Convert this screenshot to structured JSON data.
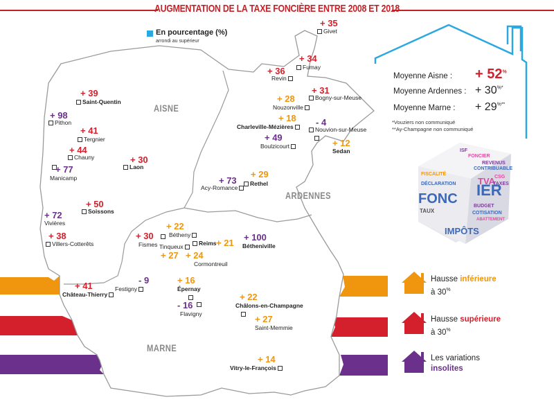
{
  "title": "AUGMENTATION DE LA TAXE FONCIÈRE ENTRE 2008 ET 2018",
  "legend": {
    "label": "En pourcentage (%)",
    "sub": "arrondi au supérieur"
  },
  "regions": {
    "aisne": "AISNE",
    "ardennes": "ARDENNES",
    "marne": "MARNE"
  },
  "colors": {
    "orange": "#f0960e",
    "red": "#d4202c",
    "purple": "#6b2f8c",
    "title": "#c62127",
    "blue": "#2ba8e0"
  },
  "towns": [
    {
      "name": "Givet",
      "value": "+ 35",
      "cat": "r"
    },
    {
      "name": "Fumay",
      "value": "+ 34",
      "cat": "r"
    },
    {
      "name": "Revin",
      "value": "+ 36",
      "cat": "r"
    },
    {
      "name": "Bogny-sur-Meuse",
      "value": "+ 31",
      "cat": "r"
    },
    {
      "name": "Nouzonville",
      "value": "+ 28",
      "cat": "o"
    },
    {
      "name": "Charleville-Mézières",
      "value": "+ 18",
      "cat": "o"
    },
    {
      "name": "Nouvion-sur-Meuse",
      "value": "- 4",
      "cat": "p"
    },
    {
      "name": "Boulzicourt",
      "value": "+ 49",
      "cat": "p"
    },
    {
      "name": "Sedan",
      "value": "+ 12",
      "cat": "o"
    },
    {
      "name": "Saint-Quentin",
      "value": "+ 39",
      "cat": "r"
    },
    {
      "name": "Pithon",
      "value": "+ 98",
      "cat": "p"
    },
    {
      "name": "Tergnier",
      "value": "+ 41",
      "cat": "r"
    },
    {
      "name": "Chauny",
      "value": "+ 44",
      "cat": "r"
    },
    {
      "name": "Laon",
      "value": "+ 30",
      "cat": "r"
    },
    {
      "name": "Manicamp",
      "value": "+ 77",
      "cat": "p"
    },
    {
      "name": "Acy-Romance",
      "value": "+ 73",
      "cat": "p"
    },
    {
      "name": "Rethel",
      "value": "+ 29",
      "cat": "o"
    },
    {
      "name": "Soissons",
      "value": "+ 50",
      "cat": "r"
    },
    {
      "name": "Vivières",
      "value": "+ 72",
      "cat": "p"
    },
    {
      "name": "Villers-Cotterêts",
      "value": "+ 38",
      "cat": "r"
    },
    {
      "name": "Bétheny",
      "value": "+ 22",
      "cat": "o"
    },
    {
      "name": "Fismes",
      "value": "+ 30",
      "cat": "r"
    },
    {
      "name": "Reims",
      "value": "+ 21",
      "cat": "o"
    },
    {
      "name": "Tinqueux",
      "value": "+ 27",
      "cat": "o"
    },
    {
      "name": "Cormontreuil",
      "value": "+ 24",
      "cat": "o"
    },
    {
      "name": "Bétheniville",
      "value": "+ 100",
      "cat": "p"
    },
    {
      "name": "Château-Thierry",
      "value": "+ 41",
      "cat": "r"
    },
    {
      "name": "Festigny",
      "value": "- 9",
      "cat": "p"
    },
    {
      "name": "Épernay",
      "value": "+ 16",
      "cat": "o"
    },
    {
      "name": "Flavigny",
      "value": "- 16",
      "cat": "p"
    },
    {
      "name": "Châlons-en-Champagne",
      "value": "+ 22",
      "cat": "o"
    },
    {
      "name": "Saint-Memmie",
      "value": "+ 27",
      "cat": "o"
    },
    {
      "name": "Vitry-le-François",
      "value": "+ 14",
      "cat": "o"
    }
  ],
  "averages": [
    {
      "label": "Moyenne Aisne :",
      "value": "+ 52",
      "unit": "%"
    },
    {
      "label": "Moyenne Ardennes :",
      "value": "+ 30",
      "unit": "%*"
    },
    {
      "label": "Moyenne Marne :",
      "value": "+ 29",
      "unit": "%**"
    }
  ],
  "notes": [
    "*Vouziers non communiqué",
    "**Ay-Champagne non communiqué"
  ],
  "categories": [
    {
      "text1": "Hausse ",
      "strong": "inférieure",
      "text2": "à 30",
      "unit": "%",
      "color": "orange"
    },
    {
      "text1": "Hausse ",
      "strong": "supérieure",
      "text2": "à 30",
      "unit": "%",
      "color": "red"
    },
    {
      "text1": "Les variations",
      "strong": "insolites",
      "text2": "",
      "unit": "",
      "color": "purple"
    }
  ],
  "cube_words": [
    "ISF",
    "FONCIER",
    "REVENUS",
    "CONTRIBUABLE",
    "CSG",
    "FISCALITÉ",
    "TVA",
    "TAXES",
    "DÉCLARATION",
    "FONC",
    "IER",
    "TAUX",
    "BUDGET",
    "IMPÔTS",
    "COTISATION",
    "ABATTEMENT"
  ]
}
